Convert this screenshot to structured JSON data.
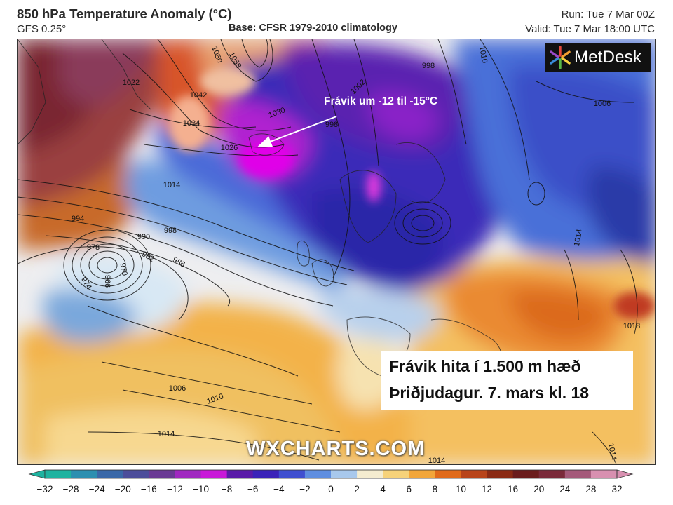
{
  "header": {
    "title": "850 hPa Temperature Anomaly (°C)",
    "model": "GFS 0.25°",
    "base": "Base: CFSR 1979-2010 climatology",
    "run": "Run: Tue 7 Mar 00Z",
    "valid": "Valid: Tue 7 Mar 18:00 UTC"
  },
  "logo": {
    "text": "MetDesk",
    "icon": "metdesk-star-icon"
  },
  "annotation": {
    "text": "Frávik um -12 til -15°C"
  },
  "caption": {
    "line1": "Frávik hita í 1.500 m hæð",
    "line2": "Þriðjudagur. 7. mars kl. 18"
  },
  "watermark": "WXCHARTS.COM",
  "isobar_labels": [
    {
      "text": "1050"
    },
    {
      "text": "1058"
    },
    {
      "text": "1042"
    },
    {
      "text": "1034"
    },
    {
      "text": "1026"
    },
    {
      "text": "1022"
    },
    {
      "text": "1030"
    },
    {
      "text": "1014"
    },
    {
      "text": "1002"
    },
    {
      "text": "998"
    },
    {
      "text": "1010"
    },
    {
      "text": "998"
    },
    {
      "text": "1006"
    },
    {
      "text": "994"
    },
    {
      "text": "990"
    },
    {
      "text": "998"
    },
    {
      "text": "978"
    },
    {
      "text": "982"
    },
    {
      "text": "986"
    },
    {
      "text": "970"
    },
    {
      "text": "966"
    },
    {
      "text": "974"
    },
    {
      "text": "1014"
    },
    {
      "text": "1018"
    },
    {
      "text": "1006"
    },
    {
      "text": "1010"
    },
    {
      "text": "1014"
    },
    {
      "text": "1014"
    },
    {
      "text": "1014"
    }
  ],
  "colorbar": {
    "ticks": [
      "−32",
      "−28",
      "−24",
      "−20",
      "−16",
      "−12",
      "−10",
      "−8",
      "−6",
      "−4",
      "−2",
      "0",
      "2",
      "4",
      "6",
      "8",
      "10",
      "12",
      "16",
      "20",
      "24",
      "28",
      "32"
    ],
    "colors": [
      "#1fb3a0",
      "#2c8fb0",
      "#3a68a8",
      "#4c4d9a",
      "#6a3a94",
      "#a028c0",
      "#c818d8",
      "#5a1aa8",
      "#3a22b8",
      "#3f4fd0",
      "#5f8ee0",
      "#a8c8ec",
      "#f4ecd0",
      "#f6d27a",
      "#f2a63a",
      "#e06a1a",
      "#b8441a",
      "#8a2a14",
      "#6a1c1c",
      "#7a2a3a",
      "#a45a7a",
      "#d890b0"
    ]
  }
}
